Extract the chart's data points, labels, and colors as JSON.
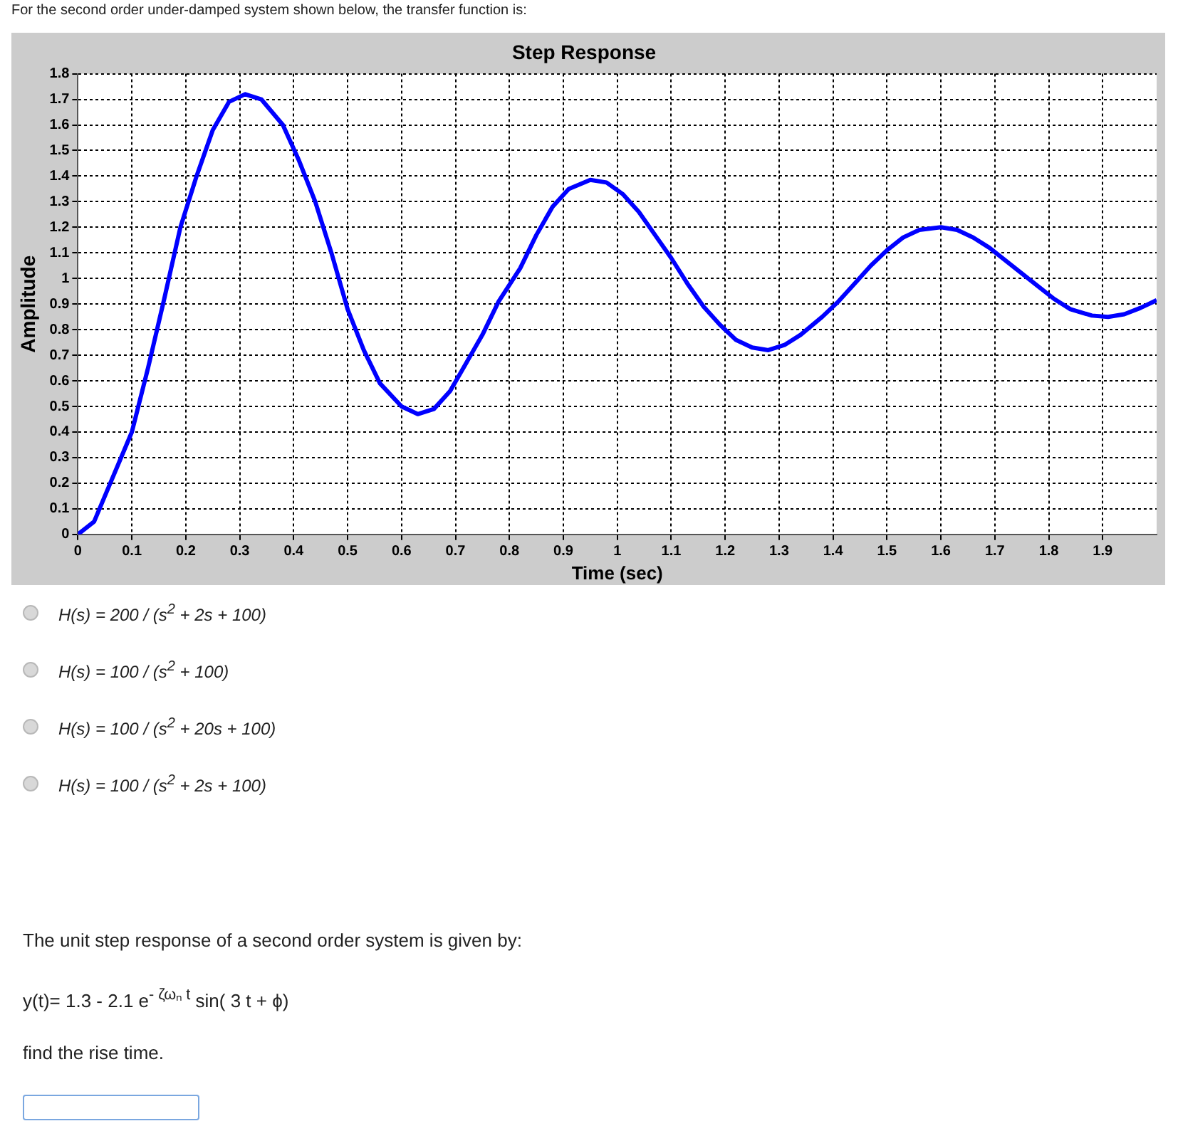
{
  "chart_data": {
    "type": "line",
    "title": "Step Response",
    "xlabel": "Time (sec)",
    "ylabel": "Amplitude",
    "x": [
      0,
      0.03,
      0.06,
      0.1,
      0.13,
      0.16,
      0.19,
      0.22,
      0.25,
      0.28,
      0.31,
      0.34,
      0.38,
      0.41,
      0.44,
      0.47,
      0.5,
      0.53,
      0.56,
      0.6,
      0.63,
      0.66,
      0.69,
      0.72,
      0.75,
      0.78,
      0.82,
      0.85,
      0.88,
      0.91,
      0.95,
      0.98,
      1.01,
      1.04,
      1.07,
      1.1,
      1.13,
      1.16,
      1.19,
      1.22,
      1.25,
      1.28,
      1.31,
      1.34,
      1.38,
      1.41,
      1.44,
      1.47,
      1.5,
      1.53,
      1.56,
      1.6,
      1.63,
      1.66,
      1.69,
      1.72,
      1.75,
      1.78,
      1.81,
      1.84,
      1.88,
      1.91,
      1.94,
      1.97,
      2.0
    ],
    "series": [
      {
        "color": "#0000ff",
        "values": [
          0,
          0.05,
          0.2,
          0.4,
          0.65,
          0.92,
          1.2,
          1.4,
          1.58,
          1.69,
          1.72,
          1.7,
          1.6,
          1.46,
          1.3,
          1.1,
          0.88,
          0.72,
          0.59,
          0.5,
          0.47,
          0.49,
          0.56,
          0.67,
          0.78,
          0.91,
          1.04,
          1.17,
          1.28,
          1.35,
          1.385,
          1.375,
          1.33,
          1.26,
          1.17,
          1.08,
          0.98,
          0.89,
          0.82,
          0.76,
          0.73,
          0.72,
          0.74,
          0.78,
          0.85,
          0.91,
          0.98,
          1.05,
          1.11,
          1.16,
          1.19,
          1.2,
          1.19,
          1.16,
          1.12,
          1.07,
          1.02,
          0.97,
          0.92,
          0.88,
          0.855,
          0.85,
          0.86,
          0.885,
          0.915
        ]
      }
    ],
    "xlim": [
      0,
      2
    ],
    "xticks": [
      0,
      0.1,
      0.2,
      0.3,
      0.4,
      0.5,
      0.6,
      0.7,
      0.8,
      0.9,
      1,
      1.1,
      1.2,
      1.3,
      1.4,
      1.5,
      1.6,
      1.7,
      1.8,
      1.9
    ],
    "ylim": [
      0,
      1.8
    ],
    "yticks": [
      0,
      0.1,
      0.2,
      0.3,
      0.4,
      0.5,
      0.6,
      0.7,
      0.8,
      0.9,
      1,
      1.1,
      1.2,
      1.3,
      1.4,
      1.5,
      1.6,
      1.7,
      1.8
    ],
    "grid": true,
    "legend": false,
    "marker": "none",
    "line_style": "solid",
    "annotations": [
      "For the second order under-damped system shown below, the transfer function is:",
      "H(s) = 200 / (s$^{2}$ + 2s + 100)",
      "H(s) = 100 / (s$^{2}$ + 100)",
      "H(s) = 100 / (s$^{2}$ + 20s + 100)",
      "H(s) = 100 / (s$^{2}$ + 2s + 100)",
      "The unit step response of a second order system is given by:",
      "y(t)= 1.3 - 2.1 e$^{- ζωₙ t}$ sin( 3 t + ϕ)",
      "find the rise time."
    ]
  }
}
